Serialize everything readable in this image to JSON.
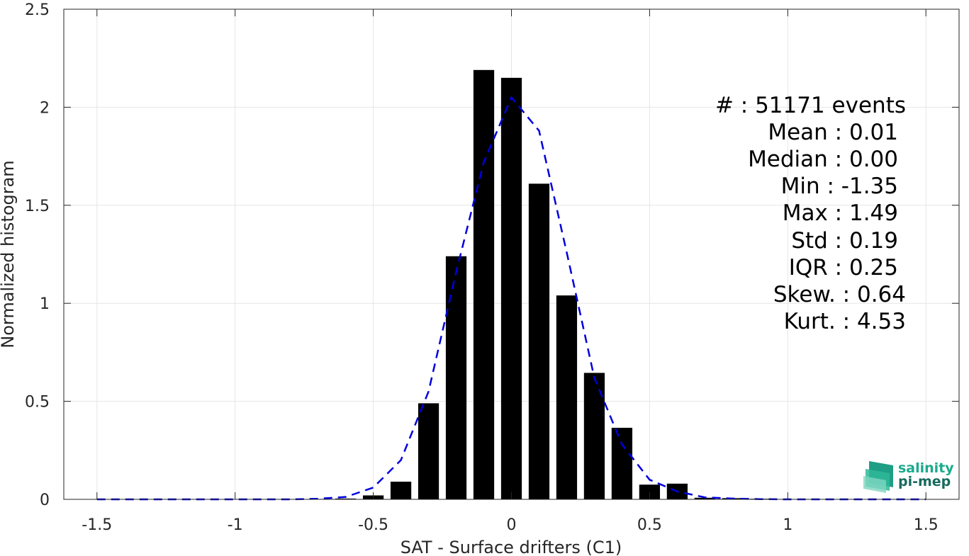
{
  "chart_data": {
    "type": "bar",
    "xlabel": "SAT - Surface drifters (C1)",
    "ylabel": "Normalized histogram",
    "xlim": [
      -1.62,
      1.62
    ],
    "ylim": [
      0,
      2.5
    ],
    "xticks": [
      -1.5,
      -1,
      -0.5,
      0,
      0.5,
      1,
      1.5
    ],
    "xtick_labels": [
      "-1.5",
      "-1",
      "-0.5",
      "0",
      "0.5",
      "1",
      "1.5"
    ],
    "yticks": [
      0,
      0.5,
      1,
      1.5,
      2,
      2.5
    ],
    "ytick_labels": [
      "0",
      "0.5",
      "1",
      "1.5",
      "2",
      "2.5"
    ],
    "grid": true,
    "bar_color": "#000000",
    "bar_width": 0.075,
    "bars": {
      "x": [
        -1.5,
        -1.4,
        -1.3,
        -1.2,
        -1.1,
        -1.0,
        -0.9,
        -0.8,
        -0.7,
        -0.6,
        -0.5,
        -0.4,
        -0.3,
        -0.2,
        -0.1,
        0.0,
        0.1,
        0.2,
        0.3,
        0.4,
        0.5,
        0.6,
        0.7,
        0.8,
        0.9,
        1.0,
        1.1,
        1.2,
        1.3,
        1.4,
        1.5
      ],
      "values": [
        0,
        0,
        0,
        0,
        0,
        0,
        0,
        0,
        0.002,
        0.004,
        0.02,
        0.09,
        0.49,
        1.24,
        2.19,
        2.15,
        1.61,
        1.04,
        0.645,
        0.365,
        0.075,
        0.08,
        0.008,
        0.006,
        0.003,
        0.001,
        0,
        0,
        0,
        0,
        0
      ]
    },
    "fit_curve": {
      "color": "#0000dd",
      "style": "dashed",
      "x": [
        -1.5,
        -1.4,
        -1.3,
        -1.2,
        -1.1,
        -1.0,
        -0.9,
        -0.8,
        -0.7,
        -0.6,
        -0.5,
        -0.4,
        -0.3,
        -0.2,
        -0.1,
        0.0,
        0.1,
        0.2,
        0.3,
        0.4,
        0.5,
        0.6,
        0.7,
        0.8,
        0.9,
        1.0,
        1.1,
        1.2,
        1.3,
        1.4,
        1.5
      ],
      "values": [
        0,
        0,
        0,
        0,
        0,
        0,
        0,
        0,
        0.003,
        0.012,
        0.06,
        0.2,
        0.55,
        1.16,
        1.72,
        2.05,
        1.88,
        1.26,
        0.62,
        0.28,
        0.1,
        0.04,
        0.01,
        0.004,
        0.001,
        0,
        0,
        0,
        0,
        0,
        0
      ]
    }
  },
  "stats": {
    "lines": [
      "#  : 51171 events",
      "Mean : 0.01",
      "Median : 0.00",
      "Min : -1.35",
      "Max : 1.49",
      "Std : 0.19",
      "IQR : 0.25",
      "Skew. : 0.64",
      "Kurt. : 4.53"
    ]
  },
  "logo": {
    "line1": "salinity",
    "line2": "pi-mep",
    "color_top": "#1aaa8c",
    "color_bottom": "#176b5e"
  }
}
